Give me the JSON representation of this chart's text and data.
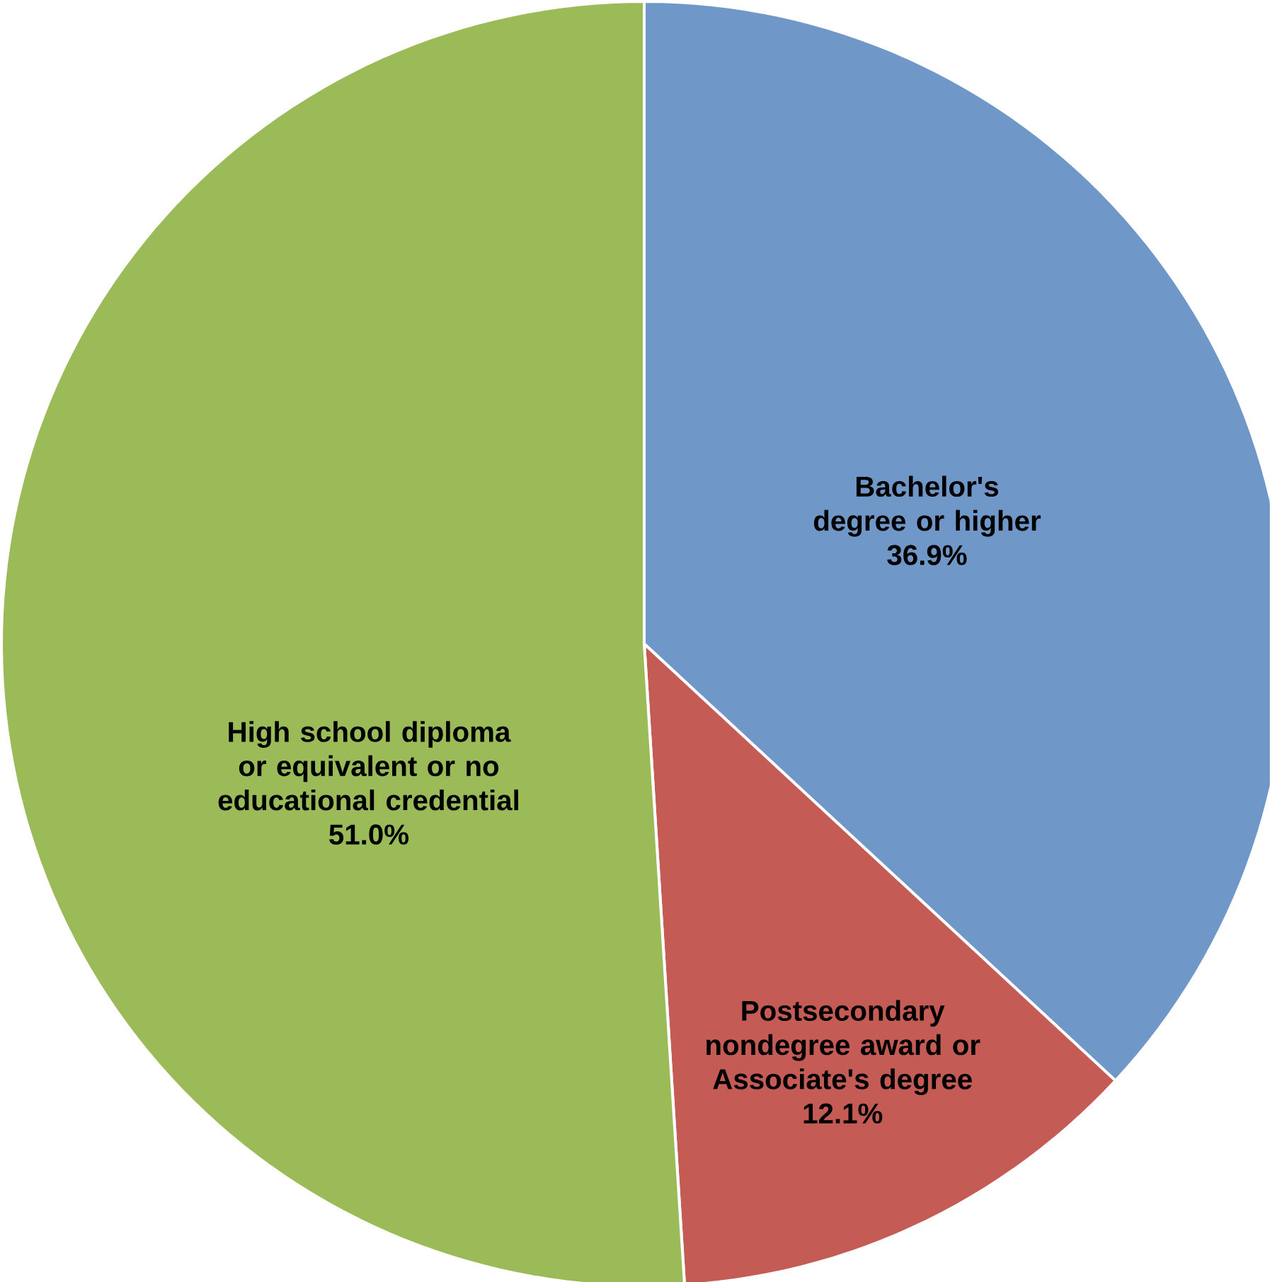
{
  "chart_data": {
    "type": "pie",
    "categories": [
      "Bachelor's degree or higher",
      "Postsecondary nondegree award or Associate's degree",
      "High school diploma or equivalent or no educational credential"
    ],
    "values": [
      36.9,
      12.1,
      51.0
    ],
    "colors": [
      "#6f98c9",
      "#c45b55",
      "#9bbb59"
    ],
    "value_labels": [
      "36.9%",
      "12.1%",
      "51.0%"
    ]
  }
}
